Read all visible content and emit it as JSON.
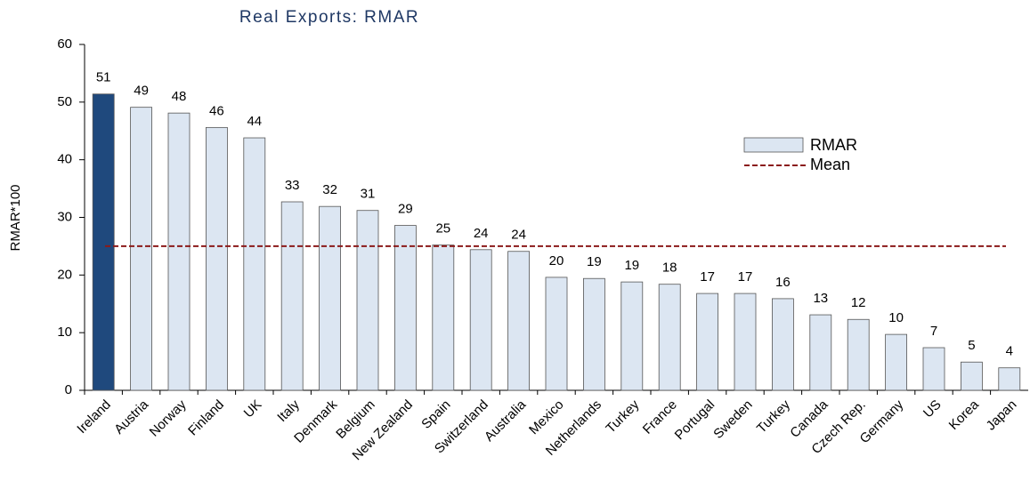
{
  "chart_data": {
    "type": "bar",
    "title": "Real Exports: RMAR",
    "y_label": "RMAR*100",
    "categories": [
      "Ireland",
      "Austria",
      "Norway",
      "Finland",
      "UK",
      "Italy",
      "Denmark",
      "Belgium",
      "New Zealand",
      "Spain",
      "Switzerland",
      "Australia",
      "Mexico",
      "Netherlands",
      "Turkey",
      "France",
      "Portugal",
      "Sweden",
      "Turkey",
      "Canada",
      "Czech Rep.",
      "Germany",
      "US",
      "Korea",
      "Japan"
    ],
    "series": [
      {
        "name": "RMAR",
        "color": "#dce6f2",
        "colors": [
          "#1f497d",
          "#dce6f2",
          "#dce6f2",
          "#dce6f2",
          "#dce6f2",
          "#dce6f2",
          "#dce6f2",
          "#dce6f2",
          "#dce6f2",
          "#dce6f2",
          "#dce6f2",
          "#dce6f2",
          "#dce6f2",
          "#dce6f2",
          "#dce6f2",
          "#dce6f2",
          "#dce6f2",
          "#dce6f2",
          "#dce6f2",
          "#dce6f2",
          "#dce6f2",
          "#dce6f2",
          "#dce6f2",
          "#dce6f2",
          "#dce6f2"
        ],
        "values": [
          51.4,
          49.1,
          48.1,
          45.6,
          43.8,
          32.7,
          31.9,
          31.2,
          28.6,
          25.2,
          24.4,
          24.1,
          19.6,
          19.4,
          18.8,
          18.4,
          16.8,
          16.8,
          15.9,
          13.1,
          12.3,
          9.7,
          7.4,
          4.9,
          3.9
        ],
        "value_labels": [
          "51",
          "49",
          "48",
          "46",
          "44",
          "33",
          "32",
          "31",
          "29",
          "25",
          "24",
          "24",
          "20",
          "19",
          "19",
          "18",
          "17",
          "17",
          "16",
          "13",
          "12",
          "10",
          "7",
          "5",
          "4"
        ]
      },
      {
        "name": "Mean",
        "color": "#8b1a1a",
        "value": 25
      }
    ],
    "ylim": [
      0,
      60
    ],
    "yticks": [
      0,
      10,
      20,
      30,
      40,
      50,
      60
    ]
  }
}
